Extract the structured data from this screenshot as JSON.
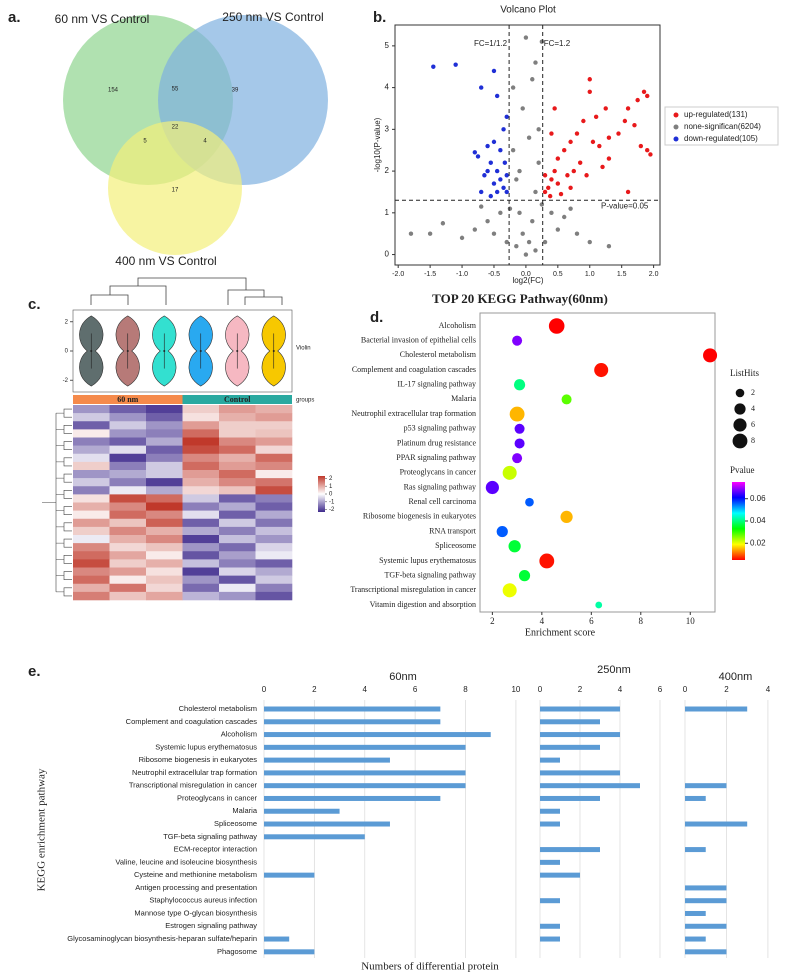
{
  "chart_data": [
    {
      "type": "venn",
      "label": "a.",
      "sets": [
        {
          "name": "60 nm VS Control",
          "color": "#8fd48f"
        },
        {
          "name": "250 nm VS Control",
          "color": "#7fb0e0"
        },
        {
          "name": "400 nm VS Control",
          "color": "#f4f07a"
        }
      ],
      "values": [
        154,
        55,
        39,
        22,
        5,
        4,
        17
      ]
    },
    {
      "type": "scatter",
      "label": "b.",
      "title": "Volcano Plot",
      "xlabel": "log2(FC)",
      "ylabel": "-log10(P-value)",
      "xlim": [
        -2.05,
        2.1
      ],
      "ylim": [
        -0.25,
        5.5
      ],
      "xticks": [
        {
          "value": -2,
          "label": "-2.0"
        },
        -1.5,
        {
          "value": -1,
          "label": "-1.0"
        },
        -0.5,
        {
          "value": 0,
          "label": "0.0"
        },
        0.5,
        {
          "value": 1,
          "label": "1.0"
        },
        1.5,
        {
          "value": 2,
          "label": "2.0"
        }
      ],
      "yticks": [
        0,
        1,
        2,
        3,
        4,
        5
      ],
      "thresholds": {
        "x": [
          -0.263,
          0.263
        ],
        "y": 1.3
      },
      "annotations": [
        "FC=1/1.2",
        "FC=1.2",
        "P-value=0.05"
      ],
      "series": [
        {
          "name": "up-regulated(131)",
          "color": "#e8191b",
          "x": [
            1.9,
            1.85,
            1.75,
            1.6,
            1.7,
            1.55,
            1.45,
            1.9,
            1.95,
            1.8,
            1.0,
            1.0,
            1.1,
            1.25,
            1.3,
            1.15,
            0.9,
            0.8,
            0.7,
            0.6,
            0.85,
            0.75,
            0.5,
            0.45,
            0.4,
            0.35,
            0.3,
            0.5,
            0.65,
            0.55,
            0.45,
            0.4,
            1.3,
            1.05,
            1.6,
            0.3,
            0.38,
            0.95,
            1.2,
            0.7
          ],
          "y": [
            3.8,
            3.9,
            3.7,
            3.5,
            3.1,
            3.2,
            2.9,
            2.5,
            2.4,
            2.6,
            4.2,
            3.9,
            3.3,
            3.5,
            2.8,
            2.6,
            3.2,
            2.9,
            2.7,
            2.5,
            2.2,
            2.0,
            2.3,
            2.0,
            1.8,
            1.6,
            1.5,
            1.7,
            1.9,
            1.45,
            3.5,
            2.9,
            2.3,
            2.7,
            1.5,
            1.9,
            1.4,
            1.9,
            2.1,
            1.6
          ]
        },
        {
          "name": "none-significan(6204)",
          "color": "#7f7f7f",
          "x": [
            0,
            0.05,
            -0.05,
            0.1,
            -0.1,
            0.15,
            -0.15,
            0.2,
            -0.2,
            0.2,
            -0.05,
            0.1,
            0.15,
            0.25,
            0,
            -0.2,
            0.05,
            -0.1,
            0.25,
            -0.25,
            0.4,
            -0.4,
            0.6,
            -0.6,
            0.8,
            -0.8,
            1.0,
            -1.0,
            -1.5,
            -1.8,
            -1.3,
            1.3,
            0.3,
            -0.3,
            0.5,
            -0.5,
            0.15,
            -0.15,
            0.7,
            -0.7
          ],
          "y": [
            0,
            0.3,
            0.5,
            0.8,
            1.0,
            1.5,
            1.8,
            2.2,
            2.5,
            3.0,
            3.5,
            4.2,
            4.6,
            5.1,
            5.2,
            4.0,
            2.8,
            2.0,
            1.2,
            1.1,
            1.0,
            1.0,
            0.9,
            0.8,
            0.5,
            0.6,
            0.3,
            0.4,
            0.5,
            0.5,
            0.75,
            0.2,
            0.3,
            0.3,
            0.6,
            0.5,
            0.1,
            0.2,
            1.1,
            1.15
          ]
        },
        {
          "name": "down-regulated(105)",
          "color": "#1f2fd6",
          "x": [
            -1.45,
            -1.1,
            -0.5,
            -0.7,
            -0.45,
            -0.35,
            -0.3,
            -0.8,
            -0.75,
            -0.6,
            -0.55,
            -0.45,
            -0.4,
            -0.35,
            -0.3,
            -0.5,
            -0.65,
            -0.7,
            -0.55,
            -0.4,
            -0.33,
            -0.6,
            -0.45,
            -0.3,
            -0.5
          ],
          "y": [
            4.5,
            4.55,
            4.4,
            4.0,
            3.8,
            3.0,
            3.3,
            2.45,
            2.35,
            2.6,
            2.2,
            2.0,
            1.8,
            1.6,
            1.5,
            1.7,
            1.9,
            1.5,
            1.4,
            2.5,
            2.2,
            2.0,
            1.5,
            1.9,
            2.7
          ]
        }
      ]
    },
    {
      "type": "heatmap",
      "label": "c.",
      "violin_title": "Violin",
      "group_title": "groups",
      "groups": [
        {
          "name": "60 nm",
          "color": "#f58a4b"
        },
        {
          "name": "Control",
          "color": "#2aa9a0"
        }
      ],
      "violin_colors": [
        "#5f6e6e",
        "#b77a78",
        "#33e0d0",
        "#29a9f0",
        "#f6b8c2",
        "#f7c800"
      ],
      "violin_ylim": [
        -2.8,
        2.8
      ],
      "violin_yticks": [
        2,
        0,
        -2
      ],
      "colorbar_lim": [
        -2.3,
        2.3
      ],
      "colorbar_ticks": [
        2,
        1,
        0,
        -1,
        -2
      ],
      "values": [
        [
          -1,
          -1.5,
          -1.8,
          0.5,
          1,
          0.8
        ],
        [
          -0.5,
          -1,
          -1.5,
          0.3,
          0.8,
          1
        ],
        [
          -1.5,
          -0.5,
          -1,
          1,
          0.5,
          0.5
        ],
        [
          0.2,
          -1,
          -1.2,
          1.5,
          0.5,
          0.6
        ],
        [
          -1.2,
          -1.5,
          -0.8,
          2,
          1.2,
          1
        ],
        [
          -0.8,
          -0.3,
          -1.5,
          1.8,
          1.5,
          0.4
        ],
        [
          -0.3,
          -1.8,
          -1.2,
          1.2,
          0.8,
          1.5
        ],
        [
          0.5,
          -1.2,
          -0.5,
          1.5,
          1,
          1.2
        ],
        [
          -1,
          -0.8,
          -0.5,
          1,
          1.5,
          0.2
        ],
        [
          -0.5,
          -1.2,
          -1.8,
          0.8,
          1.2,
          1.4
        ],
        [
          -1.2,
          -0.2,
          -0.8,
          0.4,
          0.6,
          1.8
        ],
        [
          0.3,
          1.8,
          1.5,
          -0.5,
          -1.5,
          -1.2
        ],
        [
          0.8,
          1.2,
          2,
          -1.2,
          -0.8,
          -1.5
        ],
        [
          0.2,
          1.5,
          1.2,
          -0.3,
          -1.5,
          -0.8
        ],
        [
          1,
          0.6,
          1.6,
          -1.5,
          -0.5,
          -1.3
        ],
        [
          0.5,
          1.2,
          0.8,
          -0.8,
          -1.2,
          -0.6
        ],
        [
          -0.2,
          0.8,
          1.2,
          -1.8,
          -0.6,
          -1
        ],
        [
          1.2,
          0.4,
          0.6,
          -1,
          -1.4,
          -0.4
        ],
        [
          1.5,
          0.9,
          0.2,
          -1.6,
          -0.9,
          -0.2
        ],
        [
          1.8,
          0.5,
          0.8,
          -0.6,
          -1.2,
          -1.5
        ],
        [
          1.2,
          1,
          0.3,
          -1.8,
          -0.4,
          -0.8
        ],
        [
          1.5,
          0.2,
          0.6,
          -1,
          -1.6,
          -0.5
        ],
        [
          0.8,
          1.4,
          0.4,
          -1.4,
          -0.2,
          -1.2
        ],
        [
          1.3,
          0.6,
          0.9,
          -0.7,
          -1,
          -1.6
        ]
      ]
    },
    {
      "type": "bubble",
      "label": "d.",
      "title": "TOP 20 KEGG Pathway(60nm)",
      "xlabel": "Enrichment  score",
      "categories": [
        "Alcoholism",
        "Bacterial invasion of epithelial cells",
        "Cholesterol metabolism",
        "Complement and coagulation cascades",
        "IL-17 signaling pathway",
        "Malaria",
        "Neutrophil extracellular trap formation",
        "p53 signaling pathway",
        "Platinum drug resistance",
        "PPAR signaling pathway",
        "Proteoglycans in cancer",
        "Ras signaling pathway",
        "Renal cell carcinoma",
        "Ribosome biogenesis in eukaryotes",
        "RNA transport",
        "Spliceosome",
        "Systemic lupus erythematosus",
        "TGF-beta signaling pathway",
        "Transcriptional misregulation in cancer",
        "Vitamin digestion and absorption"
      ],
      "x": [
        4.6,
        3.0,
        10.8,
        6.4,
        3.1,
        5.0,
        3.0,
        3.1,
        3.1,
        3.0,
        2.7,
        2.0,
        3.5,
        5.0,
        2.4,
        2.9,
        4.2,
        3.3,
        2.7,
        6.3
      ],
      "sizes": [
        9,
        3,
        7,
        7,
        4,
        3,
        8,
        3,
        3,
        3,
        7,
        6,
        2,
        5,
        4,
        5,
        8,
        4,
        7,
        1
      ],
      "pvalues": [
        0.005,
        0.068,
        0.004,
        0.006,
        0.04,
        0.028,
        0.015,
        0.066,
        0.066,
        0.068,
        0.022,
        0.066,
        0.056,
        0.015,
        0.056,
        0.036,
        0.006,
        0.036,
        0.02,
        0.042
      ],
      "xlim": [
        1.5,
        11.0
      ],
      "xticks": [
        2,
        4,
        6,
        8,
        10
      ],
      "size_title": "ListHits",
      "size_ticks": [
        2,
        4,
        6,
        8
      ],
      "color_title": "Pvalue",
      "color_lim": [
        0.005,
        0.075
      ],
      "color_ticks": [
        0.02,
        0.04,
        0.06
      ]
    },
    {
      "type": "bar",
      "label": "e.",
      "orientation": "horizontal",
      "color": "#5b9bd5",
      "ylabel": "KEGG enrichment pathway",
      "xlabel": "Numbers of differential protein",
      "categories": [
        "Cholesterol metabolism",
        "Complement and coagulation cascades",
        "Alcoholism",
        "Systemic lupus erythematosus",
        "Ribosome biogenesis in eukaryotes",
        "Neutrophil extracellular trap formation",
        "Transcriptional misregulation in cancer",
        "Proteoglycans in cancer",
        "Malaria",
        "Spliceosome",
        "TGF-beta signaling pathway",
        "ECM-receptor interaction",
        "Valine, leucine and isoleucine biosynthesis",
        "Cysteine and methionine metabolism",
        "Antigen processing and presentation",
        "Staphylococcus aureus infection",
        "Mannose type O-glycan biosynthesis",
        "Estrogen signaling pathway",
        "Glycosaminoglycan biosynthesis-heparan sulfate/heparin",
        "Phagosome"
      ],
      "series": [
        {
          "name": "60nm",
          "xlim": [
            0,
            10.4
          ],
          "xticks": [
            0,
            2,
            4,
            6,
            8,
            10
          ],
          "values": [
            7,
            7,
            9,
            8,
            5,
            8,
            8,
            7,
            3,
            5,
            4,
            0,
            0,
            2,
            0,
            0,
            0,
            0,
            1,
            2
          ]
        },
        {
          "name": "250nm",
          "xlim": [
            0,
            6.6
          ],
          "xticks": [
            0,
            2,
            4,
            6
          ],
          "values": [
            4,
            3,
            4,
            3,
            1,
            4,
            5,
            3,
            1,
            1,
            0,
            3,
            1,
            2,
            0,
            1,
            0,
            1,
            1,
            0
          ]
        },
        {
          "name": "400nm",
          "xlim": [
            0,
            4.1
          ],
          "xticks": [
            0,
            2,
            4
          ],
          "values": [
            3,
            0,
            0,
            0,
            0,
            0,
            2,
            1,
            0,
            3,
            0,
            1,
            0,
            0,
            2,
            2,
            1,
            2,
            1,
            2
          ]
        }
      ]
    }
  ]
}
